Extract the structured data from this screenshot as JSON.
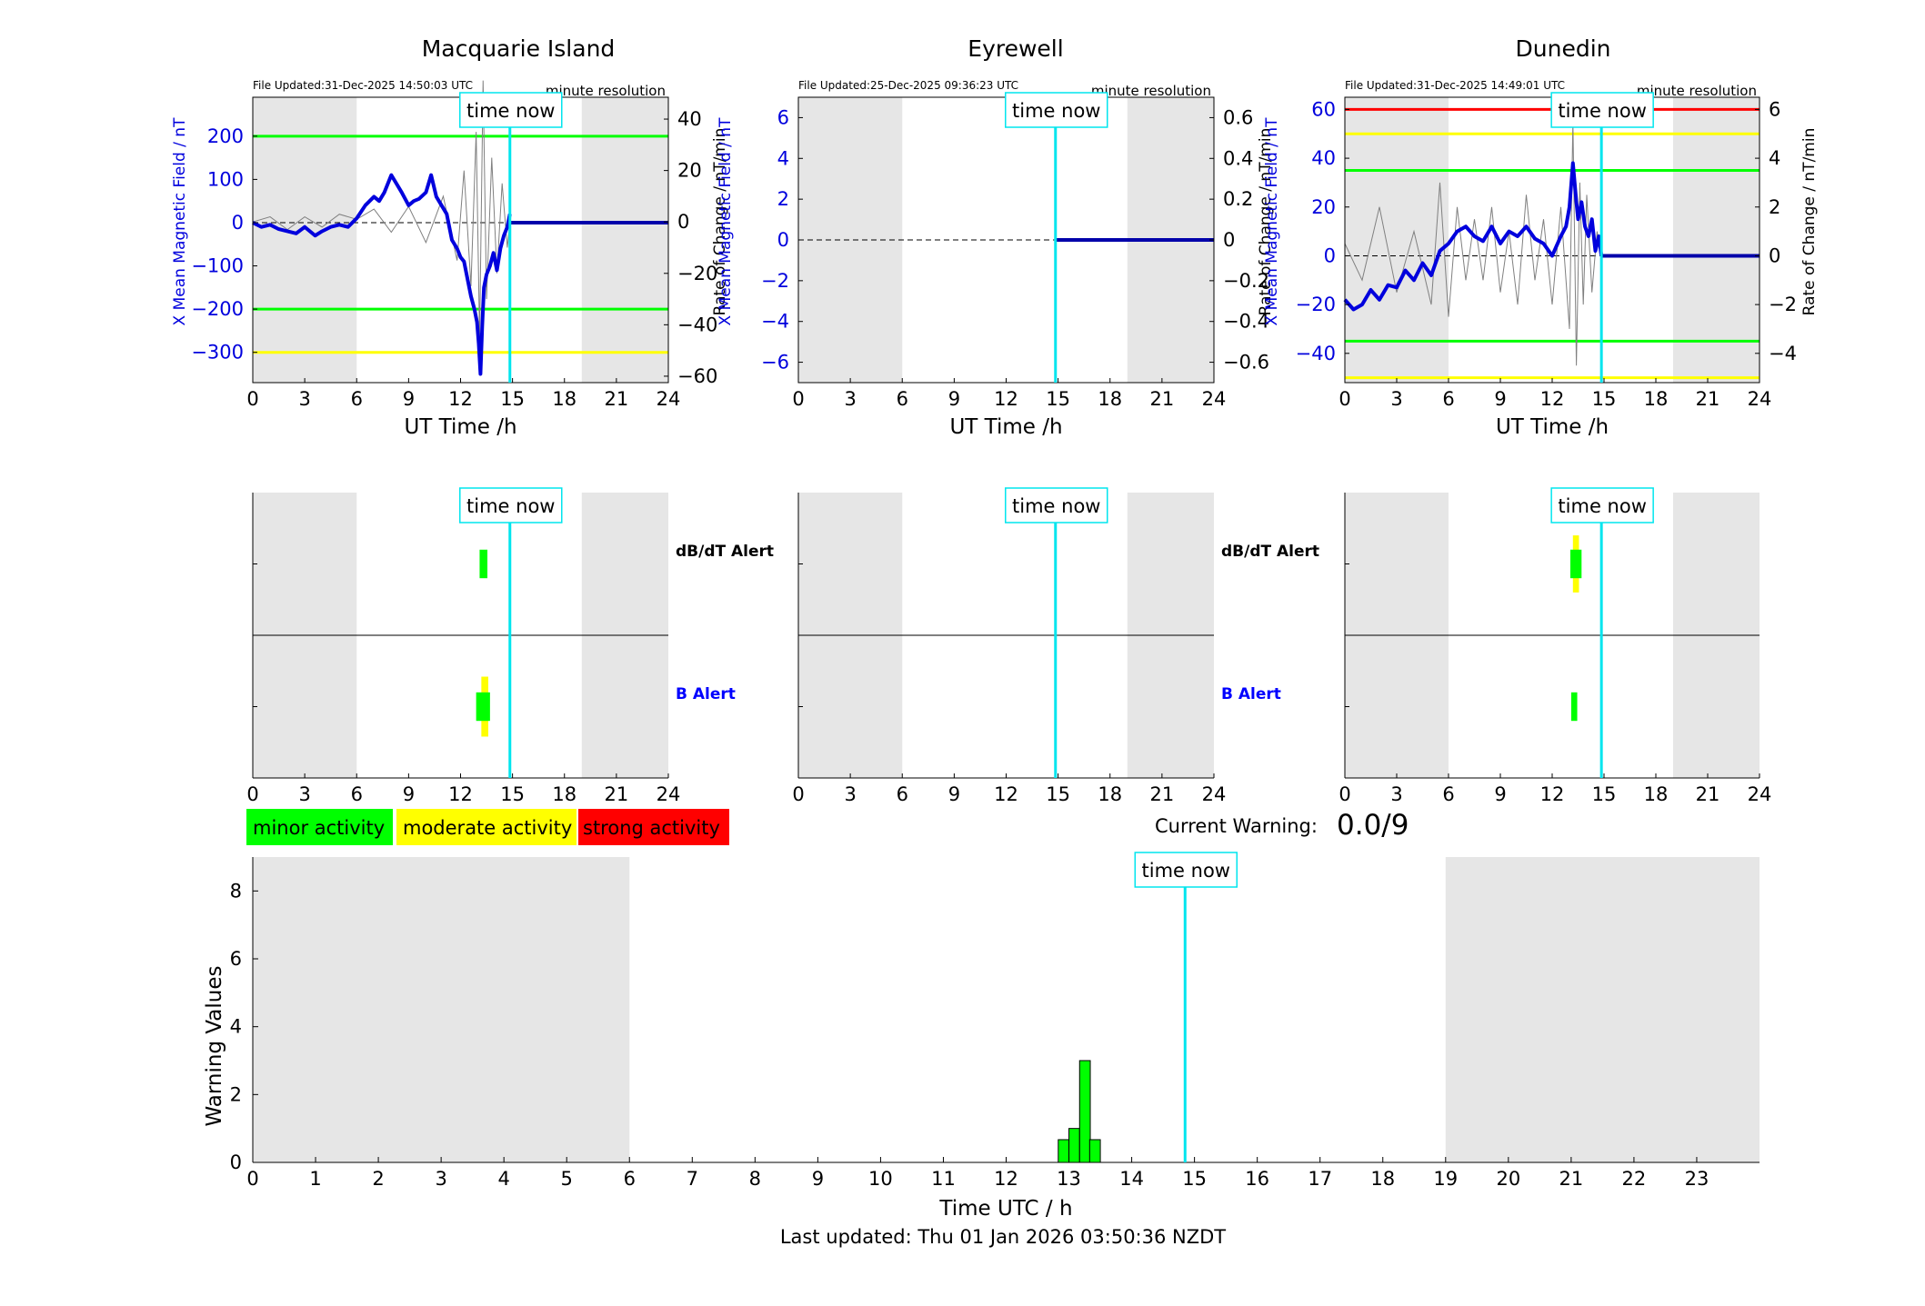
{
  "footer": {
    "last_updated": "Last updated: Thu 01 Jan 2026 03:50:36 NZDT"
  },
  "current_warning": {
    "label": "Current Warning:",
    "value": "0.0/9"
  },
  "legend": [
    {
      "label": "minor activity",
      "color": "#00ff00"
    },
    {
      "label": "moderate activity",
      "color": "#ffff00"
    },
    {
      "label": "strong activity",
      "color": "#ff0000"
    }
  ],
  "colors": {
    "field": "#0000dd",
    "rate": "#808080",
    "now_line": "#00e5ee",
    "night_shade": "#e6e6e6",
    "bar": "#00ff00"
  },
  "time_now_label": "time now",
  "alert_labels": {
    "dbdt": "dB/dT Alert",
    "b": "B Alert"
  },
  "chart_data": [
    {
      "type": "line",
      "title": "Macquarie Island",
      "file_updated": "File Updated:31-Dec-2025 14:50:03 UTC",
      "resolution": "minute resolution",
      "xlabel": "UT Time /h",
      "ylabel": "X Mean Magnetic Field / nT",
      "ylabel_right": "Rate of Change / nT/min",
      "xlim": [
        0,
        24
      ],
      "xticks": [
        0,
        3,
        6,
        9,
        12,
        15,
        18,
        21,
        24
      ],
      "ylim": [
        -370,
        290
      ],
      "yticks": [
        -300,
        -200,
        -100,
        0,
        100,
        200
      ],
      "ylim_right": [
        -62.5,
        48.5
      ],
      "yticks_right": [
        -60,
        -40,
        -20,
        0,
        20,
        40
      ],
      "night_shading": [
        [
          0,
          6
        ],
        [
          19,
          24
        ]
      ],
      "time_now": 14.85,
      "thresholds": [
        {
          "value": 200,
          "color": "#00ff00"
        },
        {
          "value": -200,
          "color": "#00ff00"
        },
        {
          "value": -300,
          "color": "#ffff00"
        }
      ],
      "series": [
        {
          "x": [
            0,
            0.5,
            1,
            1.5,
            2,
            2.5,
            3,
            3.3,
            3.6,
            4,
            4.5,
            5,
            5.5,
            6,
            6.5,
            7,
            7.3,
            7.6,
            8,
            8.3,
            8.6,
            9,
            9.3,
            9.6,
            10,
            10.3,
            10.6,
            10.9,
            11.2,
            11.5,
            11.8,
            12,
            12.2,
            12.4,
            12.6,
            12.8,
            12.95,
            13.05,
            13.15,
            13.25,
            13.35,
            13.5,
            13.7,
            13.9,
            14.1,
            14.3,
            14.5,
            14.7,
            14.85,
            15,
            24
          ],
          "y": [
            0,
            -10,
            -5,
            -15,
            -20,
            -25,
            -10,
            -20,
            -30,
            -20,
            -10,
            -5,
            -10,
            10,
            40,
            60,
            50,
            70,
            110,
            90,
            70,
            40,
            50,
            55,
            70,
            110,
            60,
            40,
            20,
            -40,
            -60,
            -80,
            -90,
            -130,
            -170,
            -200,
            -230,
            -280,
            -350,
            -240,
            -150,
            -120,
            -100,
            -70,
            -110,
            -60,
            -30,
            -10,
            20,
            0,
            0
          ]
        }
      ],
      "rate_series": {
        "x": [
          0,
          1,
          2,
          3,
          4,
          5,
          6,
          7,
          8,
          9,
          10,
          11,
          11.8,
          12.2,
          12.6,
          12.9,
          13.1,
          13.3,
          13.5,
          13.8,
          14.1,
          14.4,
          14.7,
          14.85
        ],
        "y": [
          0,
          2,
          -3,
          2,
          -2,
          3,
          1,
          5,
          -4,
          6,
          -8,
          10,
          -15,
          20,
          -25,
          35,
          -45,
          55,
          -30,
          25,
          -20,
          15,
          -10,
          0
        ]
      }
    },
    {
      "type": "line",
      "title": "Eyrewell",
      "file_updated": "File Updated:25-Dec-2025 09:36:23 UTC",
      "resolution": "minute resolution",
      "xlabel": "UT Time /h",
      "ylabel": "X Mean Magnetic Field / nT",
      "ylabel_right": "Rate of Change / nT/min",
      "xlim": [
        0,
        24
      ],
      "xticks": [
        0,
        3,
        6,
        9,
        12,
        15,
        18,
        21,
        24
      ],
      "ylim": [
        -7,
        7
      ],
      "yticks": [
        -6,
        -4,
        -2,
        0,
        2,
        4,
        6
      ],
      "ylim_right": [
        -0.7,
        0.7
      ],
      "yticks_right": [
        -0.6,
        -0.4,
        -0.2,
        0,
        0.2,
        0.4,
        0.6
      ],
      "night_shading": [
        [
          0,
          6
        ],
        [
          19,
          24
        ]
      ],
      "time_now": 14.85,
      "thresholds": [],
      "series": [
        {
          "x": [
            0,
            24
          ],
          "y": [
            0,
            0
          ]
        }
      ],
      "rate_series": {
        "x": [],
        "y": []
      }
    },
    {
      "type": "line",
      "title": "Dunedin",
      "file_updated": "File Updated:31-Dec-2025 14:49:01 UTC",
      "resolution": "minute resolution",
      "xlabel": "UT Time /h",
      "ylabel": "X Mean Magnetic Field / nT",
      "ylabel_right": "Rate of Change / nT/min",
      "xlim": [
        0,
        24
      ],
      "xticks": [
        0,
        3,
        6,
        9,
        12,
        15,
        18,
        21,
        24
      ],
      "ylim": [
        -52,
        65
      ],
      "yticks": [
        -40,
        -20,
        0,
        20,
        40,
        60
      ],
      "ylim_right": [
        -5.2,
        6.5
      ],
      "yticks_right": [
        -4,
        -2,
        0,
        2,
        4,
        6
      ],
      "night_shading": [
        [
          0,
          6
        ],
        [
          19,
          24
        ]
      ],
      "time_now": 14.85,
      "thresholds": [
        {
          "value": 60,
          "color": "#ff0000"
        },
        {
          "value": 50,
          "color": "#ffff00"
        },
        {
          "value": 35,
          "color": "#00ff00"
        },
        {
          "value": -35,
          "color": "#00ff00"
        },
        {
          "value": -50,
          "color": "#ffff00"
        }
      ],
      "series": [
        {
          "x": [
            0,
            0.5,
            1,
            1.5,
            2,
            2.5,
            3,
            3.5,
            4,
            4.5,
            5,
            5.5,
            6,
            6.5,
            7,
            7.5,
            8,
            8.5,
            9,
            9.5,
            10,
            10.5,
            11,
            11.5,
            12,
            12.5,
            12.8,
            13,
            13.2,
            13.3,
            13.4,
            13.5,
            13.7,
            13.9,
            14.1,
            14.3,
            14.5,
            14.7,
            14.85,
            15,
            24
          ],
          "y": [
            -18,
            -22,
            -20,
            -14,
            -18,
            -12,
            -13,
            -6,
            -10,
            -3,
            -8,
            2,
            5,
            10,
            12,
            8,
            6,
            12,
            5,
            10,
            8,
            12,
            7,
            5,
            0,
            8,
            12,
            20,
            38,
            30,
            22,
            15,
            22,
            12,
            8,
            15,
            2,
            8,
            0,
            0,
            0
          ]
        }
      ],
      "rate_series": {
        "x": [
          0,
          1,
          2,
          3,
          4,
          5,
          5.5,
          6,
          6.5,
          7,
          7.5,
          8,
          8.5,
          9,
          9.5,
          10,
          10.5,
          11,
          11.5,
          12,
          12.5,
          13,
          13.2,
          13.4,
          13.6,
          13.8,
          14,
          14.3,
          14.6,
          14.85
        ],
        "y": [
          0.5,
          -1,
          2,
          -1.5,
          1,
          -2,
          3,
          -2.5,
          2,
          -1,
          1.5,
          -1,
          2,
          -1.5,
          1,
          -2,
          2.5,
          -1,
          1.5,
          -2,
          2,
          -3,
          5.5,
          -4.5,
          3,
          -2,
          2.5,
          -1.5,
          1,
          0
        ]
      }
    },
    {
      "type": "bar",
      "title": "",
      "xlabel": "Time UTC / h",
      "ylabel": "Warning Values",
      "xlim": [
        0,
        24
      ],
      "ylim": [
        0,
        9
      ],
      "xticks": [
        0,
        1,
        2,
        3,
        4,
        5,
        6,
        7,
        8,
        9,
        10,
        11,
        12,
        13,
        14,
        15,
        16,
        17,
        18,
        19,
        20,
        21,
        22,
        23
      ],
      "yticks": [
        0,
        2,
        4,
        6,
        8
      ],
      "night_shading": [
        [
          0,
          6
        ],
        [
          19,
          24
        ]
      ],
      "time_now": 14.85,
      "bars": [
        {
          "x": 12.83,
          "width": 0.17,
          "value": 0.67
        },
        {
          "x": 13.0,
          "width": 0.17,
          "value": 1
        },
        {
          "x": 13.17,
          "width": 0.17,
          "value": 3
        },
        {
          "x": 13.33,
          "width": 0.17,
          "value": 0.67
        }
      ]
    }
  ],
  "alerts": [
    {
      "dbdt": [
        {
          "x": 13.1,
          "width": 0.45,
          "center": 0.5,
          "level": "minor",
          "height": 0.2
        }
      ],
      "b": [
        {
          "x": 13.2,
          "width": 0.4,
          "center": 0.5,
          "level": "moderate",
          "height": 0.42
        },
        {
          "x": 12.9,
          "width": 0.8,
          "center": 0.5,
          "level": "minor",
          "height": 0.2
        }
      ]
    },
    {
      "dbdt": [],
      "b": []
    },
    {
      "dbdt": [
        {
          "x": 13.2,
          "width": 0.35,
          "center": 0.5,
          "level": "moderate",
          "height": 0.4
        },
        {
          "x": 13.05,
          "width": 0.65,
          "center": 0.5,
          "level": "minor",
          "height": 0.2
        }
      ],
      "b": [
        {
          "x": 13.1,
          "width": 0.35,
          "center": 0.5,
          "level": "minor",
          "height": 0.2
        }
      ]
    }
  ]
}
